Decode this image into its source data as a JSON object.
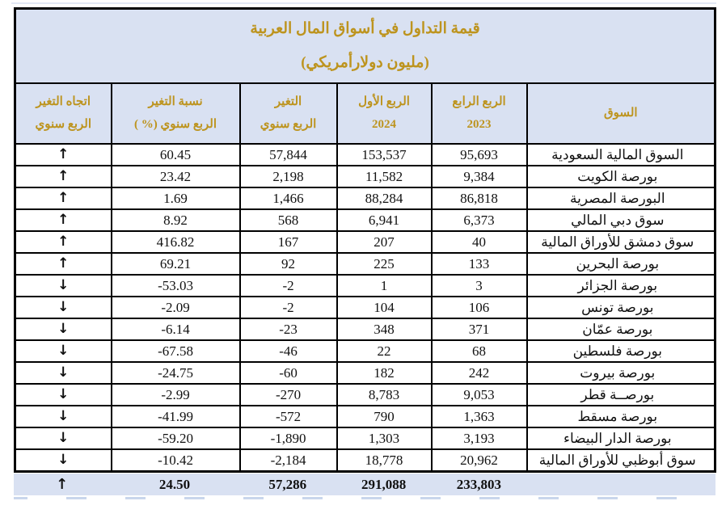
{
  "title": {
    "line1": "قيمة التداول في أسواق المال العربية",
    "line2": "(مليون دولارأمريكي)"
  },
  "header": {
    "market": "السوق",
    "q4_2023": {
      "line1": "الربع الرابع",
      "line2": "2023"
    },
    "q1_2024": {
      "line1": "الربع الأول",
      "line2": "2024"
    },
    "change": {
      "line1": "التغير",
      "line2": "الربع سنوي"
    },
    "pct_change": {
      "line1": "نسبة التغير",
      "line2": "الربع سنوي (% )"
    },
    "trend": {
      "line1": "اتجاه التغير",
      "line2": "الربع سنوي"
    }
  },
  "icons": {
    "up_arrow": "↑",
    "down_arrow": "↓"
  },
  "colors": {
    "header_bg": "#d9e1f2",
    "gold_text": "#bd941f",
    "up_green": "#7cc142",
    "down_red": "#ea1c22",
    "border": "#000000"
  },
  "rows": [
    {
      "market": "السوق المالية السعودية",
      "q4_2023": "95,693",
      "q1_2024": "153,537",
      "change": "57,844",
      "pct_change": "60.45",
      "direction": "up"
    },
    {
      "market": "بورصة الكويت",
      "q4_2023": "9,384",
      "q1_2024": "11,582",
      "change": "2,198",
      "pct_change": "23.42",
      "direction": "up"
    },
    {
      "market": "البورصة المصرية",
      "q4_2023": "86,818",
      "q1_2024": "88,284",
      "change": "1,466",
      "pct_change": "1.69",
      "direction": "up"
    },
    {
      "market": "سوق دبي المالي",
      "q4_2023": "6,373",
      "q1_2024": "6,941",
      "change": "568",
      "pct_change": "8.92",
      "direction": "up"
    },
    {
      "market": "سوق دمشق للأوراق المالية",
      "q4_2023": "40",
      "q1_2024": "207",
      "change": "167",
      "pct_change": "416.82",
      "direction": "up"
    },
    {
      "market": "بورصة البحرين",
      "q4_2023": "133",
      "q1_2024": "225",
      "change": "92",
      "pct_change": "69.21",
      "direction": "up"
    },
    {
      "market": "بورصة الجزائر",
      "q4_2023": "3",
      "q1_2024": "1",
      "change": "-2",
      "pct_change": "-53.03",
      "direction": "down"
    },
    {
      "market": "بورصة تونس",
      "q4_2023": "106",
      "q1_2024": "104",
      "change": "-2",
      "pct_change": "-2.09",
      "direction": "down"
    },
    {
      "market": "بورصة عمّان",
      "q4_2023": "371",
      "q1_2024": "348",
      "change": "-23",
      "pct_change": "-6.14",
      "direction": "down"
    },
    {
      "market": "بورصة فلسطين",
      "q4_2023": "68",
      "q1_2024": "22",
      "change": "-46",
      "pct_change": "-67.58",
      "direction": "down"
    },
    {
      "market": "بورصة بيروت",
      "q4_2023": "242",
      "q1_2024": "182",
      "change": "-60",
      "pct_change": "-24.75",
      "direction": "down"
    },
    {
      "market": "بورصــة قطر",
      "q4_2023": "9,053",
      "q1_2024": "8,783",
      "change": "-270",
      "pct_change": "-2.99",
      "direction": "down"
    },
    {
      "market": "بورصة مسقط",
      "q4_2023": "1,363",
      "q1_2024": "790",
      "change": "-572",
      "pct_change": "-41.99",
      "direction": "down"
    },
    {
      "market": "بورصة الدار البيضاء",
      "q4_2023": "3,193",
      "q1_2024": "1,303",
      "change": "-1,890",
      "pct_change": "-59.20",
      "direction": "down"
    },
    {
      "market": "سوق أبوظبي للأوراق المالية",
      "q4_2023": "20,962",
      "q1_2024": "18,778",
      "change": "-2,184",
      "pct_change": "-10.42",
      "direction": "down"
    }
  ],
  "total": {
    "market": "",
    "q4_2023": "233,803",
    "q1_2024": "291,088",
    "change": "57,286",
    "pct_change": "24.50",
    "direction": "up"
  }
}
